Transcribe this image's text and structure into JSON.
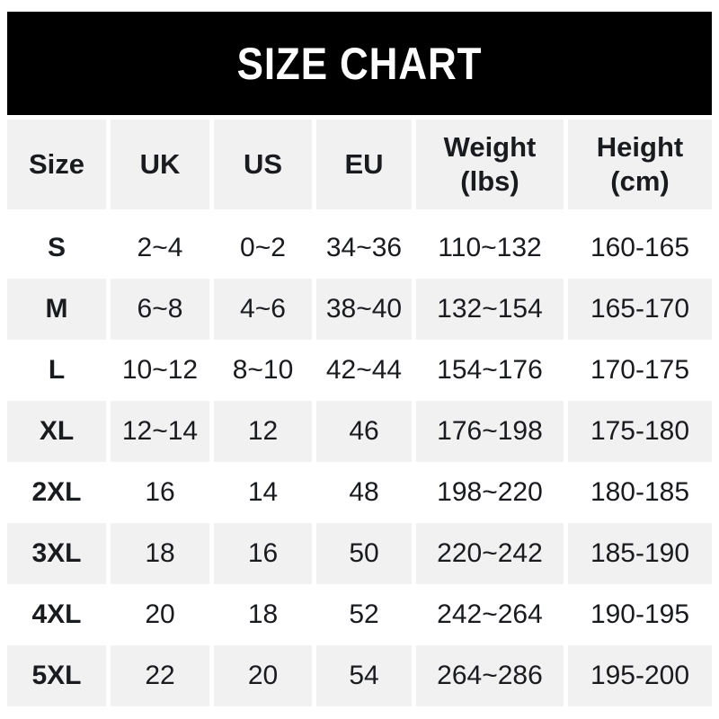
{
  "banner": {
    "title": "SIZE CHART"
  },
  "header": {
    "cells": [
      {
        "line1": "Size"
      },
      {
        "line1": "UK"
      },
      {
        "line1": "US"
      },
      {
        "line1": "EU"
      },
      {
        "line1": "Weight",
        "line2": "(lbs)"
      },
      {
        "line1": "Height",
        "line2": "(cm)"
      }
    ]
  },
  "chart_data": {
    "type": "table",
    "title": "SIZE CHART",
    "columns": [
      "Size",
      "UK",
      "US",
      "EU",
      "Weight (lbs)",
      "Height (cm)"
    ],
    "rows": [
      [
        "S",
        "2~4",
        "0~2",
        "34~36",
        "110~132",
        "160-165"
      ],
      [
        "M",
        "6~8",
        "4~6",
        "38~40",
        "132~154",
        "165-170"
      ],
      [
        "L",
        "10~12",
        "8~10",
        "42~44",
        "154~176",
        "170-175"
      ],
      [
        "XL",
        "12~14",
        "12",
        "46",
        "176~198",
        "175-180"
      ],
      [
        "2XL",
        "16",
        "14",
        "48",
        "198~220",
        "180-185"
      ],
      [
        "3XL",
        "18",
        "16",
        "50",
        "220~242",
        "185-190"
      ],
      [
        "4XL",
        "20",
        "18",
        "52",
        "242~264",
        "190-195"
      ],
      [
        "5XL",
        "22",
        "20",
        "54",
        "264~286",
        "195-200"
      ]
    ]
  },
  "colors": {
    "banner_bg": "#000000",
    "banner_text": "#ffffff",
    "row_shaded_bg": "#f1f1f2",
    "text": "#1a1b1e",
    "page_bg": "#ffffff"
  }
}
